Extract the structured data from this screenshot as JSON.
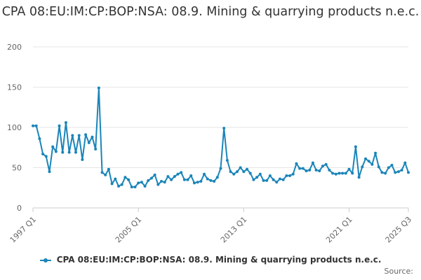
{
  "chart_data": {
    "type": "line",
    "title": "CPA 08:EU:IM:CP:BOP:NSA: 08.9. Mining & quarrying products n.e.c.",
    "xlabel": "",
    "ylabel": "",
    "x_tick_labels": [
      "1997 Q1",
      "2005 Q1",
      "2013 Q1",
      "2021 Q1",
      "2025 Q3"
    ],
    "x_range": [
      "1997 Q1",
      "2025 Q3"
    ],
    "y_ticks": [
      0,
      50,
      100,
      150,
      200
    ],
    "ylim": [
      0,
      200
    ],
    "grid": "horizontal",
    "legend_position": "bottom",
    "series": [
      {
        "name": "CPA 08:EU:IM:CP:BOP:NSA: 08.9. Mining & quarrying products n.e.c.",
        "color": "#1a85b9",
        "start_period": "1997 Q1",
        "frequency": "quarterly",
        "values": [
          102,
          102,
          86,
          67,
          64,
          45,
          76,
          70,
          102,
          69,
          106,
          69,
          90,
          69,
          90,
          60,
          91,
          81,
          88,
          73,
          149,
          44,
          41,
          48,
          30,
          36,
          27,
          29,
          38,
          35,
          26,
          26,
          31,
          32,
          27,
          34,
          37,
          41,
          29,
          33,
          32,
          39,
          35,
          39,
          42,
          44,
          35,
          35,
          40,
          31,
          32,
          33,
          42,
          36,
          34,
          33,
          38,
          49,
          99,
          59,
          45,
          42,
          45,
          50,
          45,
          48,
          43,
          35,
          38,
          42,
          34,
          34,
          40,
          35,
          32,
          36,
          35,
          40,
          40,
          42,
          55,
          49,
          49,
          46,
          47,
          56,
          47,
          46,
          52,
          54,
          47,
          43,
          42,
          43,
          43,
          43,
          48,
          43,
          76,
          38,
          51,
          61,
          58,
          54,
          68,
          51,
          44,
          43,
          50,
          53,
          44,
          45,
          47,
          56,
          44
        ]
      }
    ]
  },
  "source_label": "Source:"
}
